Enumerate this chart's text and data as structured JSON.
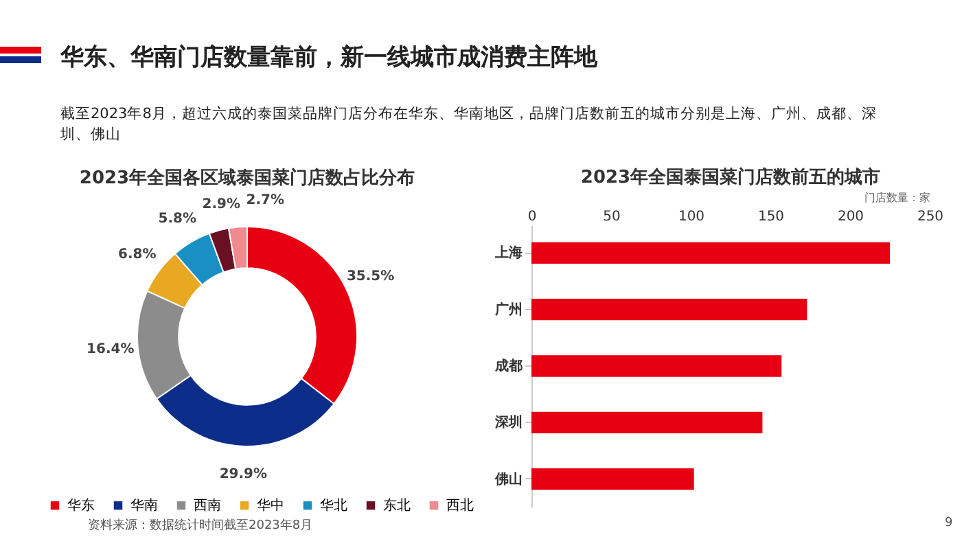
{
  "chart_data": [
    {
      "type": "donut",
      "title": "2023年全国各区域泰国菜门店数占比分布",
      "categories": [
        "华东",
        "华南",
        "西南",
        "华中",
        "华北",
        "东北",
        "西北"
      ],
      "values": [
        35.5,
        29.9,
        16.4,
        6.8,
        5.8,
        2.9,
        2.7
      ],
      "colors": [
        "#e60012",
        "#0c2d8a",
        "#8c8c8c",
        "#e8a822",
        "#1a8fc4",
        "#6b0f23",
        "#ef8a8f"
      ],
      "value_labels": [
        "35.5%",
        "29.9%",
        "16.4%",
        "6.8%",
        "5.8%",
        "2.9%",
        "2.7%"
      ],
      "legend": "bottom",
      "annotations": [
        "华东、华南门店数量靠前，新一线城市成消费主阵地",
        "截至2023年8月，超过六成的泰国菜品牌门店分布在华东、华南地区，品牌门店数前五的城市分别是上海、广州、成都、深圳、佛山",
        "资料来源：数据统计时间截至2023年8月"
      ]
    },
    {
      "type": "bar",
      "orientation": "horizontal",
      "title": "2023年全国泰国菜门店数前五的城市",
      "xlabel": "门店数量：家",
      "categories": [
        "上海",
        "广州",
        "成都",
        "深圳",
        "佛山"
      ],
      "values": [
        225,
        173,
        157,
        145,
        102
      ],
      "color": "#e60012",
      "xlim": [
        0,
        250
      ],
      "xticks": [
        0,
        50,
        100,
        150,
        200,
        250
      ],
      "annotations": [
        "9"
      ]
    }
  ]
}
